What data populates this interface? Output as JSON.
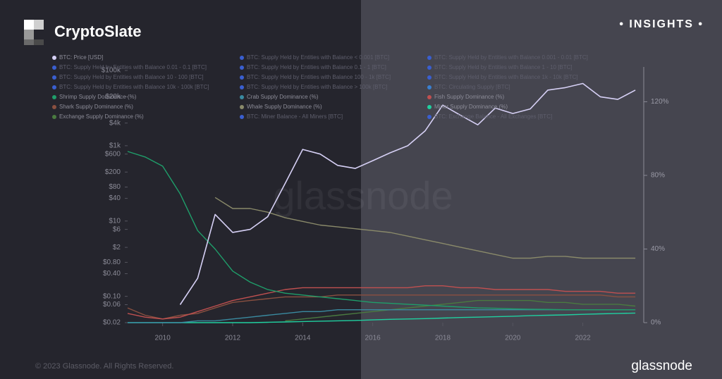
{
  "header": {
    "brand": "CryptoSlate",
    "badge": "• INSIGHTS •"
  },
  "footer": {
    "copyright": "© 2023 Glassnode. All Rights Reserved.",
    "logo": "glassnode"
  },
  "chart_data": {
    "type": "line",
    "watermark": "glassnode",
    "legend": "top",
    "yscale": "log",
    "x": [
      2009,
      2009.5,
      2010,
      2010.5,
      2011,
      2011.5,
      2012,
      2012.5,
      2013,
      2013.5,
      2014,
      2014.5,
      2015,
      2015.5,
      2016,
      2016.5,
      2017,
      2017.5,
      2018,
      2018.5,
      2019,
      2019.5,
      2020,
      2020.5,
      2021,
      2021.5,
      2022,
      2022.5,
      2023,
      2023.5
    ],
    "xlim": [
      2009,
      2023.7
    ],
    "xticks": [
      2010,
      2012,
      2014,
      2016,
      2018,
      2020,
      2022
    ],
    "ylim": [
      0.02,
      100000
    ],
    "yticks": [
      {
        "value": 0.02,
        "label": "$0.02"
      },
      {
        "value": 0.06,
        "label": "$0.06"
      },
      {
        "value": 0.1,
        "label": "$0.10"
      },
      {
        "value": 0.4,
        "label": "$0.40"
      },
      {
        "value": 0.8,
        "label": "$0.80"
      },
      {
        "value": 2,
        "label": "$2"
      },
      {
        "value": 6,
        "label": "$6"
      },
      {
        "value": 10,
        "label": "$10"
      },
      {
        "value": 40,
        "label": "$40"
      },
      {
        "value": 80,
        "label": "$80"
      },
      {
        "value": 200,
        "label": "$200"
      },
      {
        "value": 600,
        "label": "$600"
      },
      {
        "value": 1000,
        "label": "$1k"
      },
      {
        "value": 4000,
        "label": "$4k"
      },
      {
        "value": 20000,
        "label": "$20k"
      },
      {
        "value": 100000,
        "label": "$100k"
      }
    ],
    "y2lim": [
      0,
      137
    ],
    "y2ticks": [
      {
        "value": 0,
        "label": "0%"
      },
      {
        "value": 40,
        "label": "40%"
      },
      {
        "value": 80,
        "label": "80%"
      },
      {
        "value": 120,
        "label": "120%"
      }
    ],
    "series": [
      {
        "name": "BTC: Price [USD]",
        "color": "#d6d0f5",
        "values": [
          null,
          null,
          null,
          0.06,
          0.3,
          15,
          5,
          6,
          13,
          100,
          800,
          600,
          300,
          250,
          400,
          650,
          1000,
          2500,
          12000,
          6500,
          3600,
          10000,
          7200,
          9500,
          30000,
          35000,
          45000,
          20000,
          17000,
          30000
        ]
      },
      {
        "name": "BTC: Supply Held by Entities with Balance < 0.001 [BTC]",
        "color": "#3a5fd0",
        "hidden": true
      },
      {
        "name": "BTC: Supply Held by Entities with Balance 0.001 - 0.01 [BTC]",
        "color": "#3a5fd0",
        "hidden": true
      },
      {
        "name": "BTC: Supply Held by Entities with Balance 0.01 - 0.1 [BTC]",
        "color": "#3a5fd0",
        "hidden": true
      },
      {
        "name": "BTC: Supply Held by Entities with Balance 0.1 - 1 [BTC]",
        "color": "#3a5fd0",
        "hidden": true
      },
      {
        "name": "BTC: Supply Held by Entities with Balance 1 - 10 [BTC]",
        "color": "#3a5fd0",
        "hidden": true
      },
      {
        "name": "BTC: Supply Held by Entities with Balance 10 - 100 [BTC]",
        "color": "#3a5fd0",
        "hidden": true
      },
      {
        "name": "BTC: Supply Held by Entities with Balance 100 - 1k [BTC]",
        "color": "#3a5fd0",
        "hidden": true
      },
      {
        "name": "BTC: Supply Held by Entities with Balance 1k - 10k [BTC]",
        "color": "#3a5fd0",
        "hidden": true
      },
      {
        "name": "BTC: Supply Held by Entities with Balance 10k - 100k [BTC]",
        "color": "#3a5fd0",
        "hidden": true
      },
      {
        "name": "BTC: Supply Held by Entities with Balance > 100k [BTC]",
        "color": "#3a5fd0",
        "hidden": true
      },
      {
        "name": "BTC: Circulating Supply [BTC]",
        "color": "#3a7fd0",
        "hidden": true
      },
      {
        "name": "Shrimp Supply Dominance (%)",
        "color": "#1f9e6a",
        "axis": "y2",
        "values": [
          93,
          90,
          85,
          70,
          50,
          40,
          28,
          22,
          18,
          16,
          15,
          14,
          13,
          12,
          11,
          10.5,
          10,
          9.5,
          9,
          8.5,
          8,
          7.8,
          7.5,
          7.3,
          7.2,
          7,
          7,
          7,
          7,
          7
        ]
      },
      {
        "name": "Crab Supply Dominance (%)",
        "color": "#3a8aa0",
        "axis": "y2",
        "values": [
          0,
          0,
          0,
          0,
          1,
          1,
          2,
          3,
          4,
          5,
          6,
          6,
          7,
          7,
          7,
          7,
          7,
          7,
          7,
          7,
          7,
          7,
          7,
          7,
          7,
          7,
          7,
          7,
          7,
          7
        ]
      },
      {
        "name": "Fish Supply Dominance (%)",
        "color": "#c05050",
        "axis": "y2",
        "values": [
          5,
          3,
          2,
          3,
          6,
          9,
          12,
          14,
          16,
          18,
          19,
          19,
          19,
          19,
          19,
          19,
          19,
          20,
          20,
          19,
          19,
          18,
          18,
          18,
          18,
          17,
          17,
          17,
          16,
          16
        ]
      },
      {
        "name": "Shark Supply Dominance (%)",
        "color": "#8a5040",
        "axis": "y2",
        "values": [
          8,
          4,
          2,
          4,
          5,
          8,
          11,
          12,
          13,
          14,
          14,
          14,
          15,
          15,
          15,
          15,
          15,
          15,
          15,
          15,
          15,
          15,
          15,
          15,
          15,
          15,
          15,
          15,
          14,
          14
        ]
      },
      {
        "name": "Whale Supply Dominance (%)",
        "color": "#8a8a6a",
        "axis": "y2",
        "values": [
          null,
          null,
          null,
          null,
          null,
          68,
          62,
          62,
          60,
          57,
          55,
          53,
          52,
          51,
          50,
          49,
          47,
          45,
          43,
          41,
          39,
          37,
          35,
          35,
          36,
          36,
          35,
          35,
          35,
          35
        ]
      },
      {
        "name": "Miner Supply Dominance (%)",
        "color": "#20d0a0",
        "axis": "y2",
        "values": [
          0,
          0,
          0,
          0,
          0,
          0,
          0,
          0,
          0.2,
          0.4,
          0.6,
          0.8,
          1,
          1.2,
          1.5,
          1.8,
          2,
          2.2,
          2.5,
          2.8,
          3,
          3.2,
          3.5,
          3.8,
          4,
          4.2,
          4.5,
          4.8,
          5,
          5.2
        ]
      },
      {
        "name": "Exchange Supply Dominance (%)",
        "color": "#4a7a40",
        "axis": "y2",
        "values": [
          null,
          null,
          null,
          null,
          null,
          null,
          null,
          null,
          null,
          1,
          2,
          3,
          4,
          5,
          6,
          7,
          8,
          9,
          10,
          11,
          12,
          12,
          12,
          12,
          11,
          11,
          10,
          10,
          10,
          9
        ]
      },
      {
        "name": "BTC: Miner Balance - All Miners [BTC]",
        "color": "#3a5fd0",
        "hidden": true
      },
      {
        "name": "BTC: Exchange Balance - All Exchanges [BTC]",
        "color": "#3a5fd0",
        "hidden": true
      }
    ]
  }
}
